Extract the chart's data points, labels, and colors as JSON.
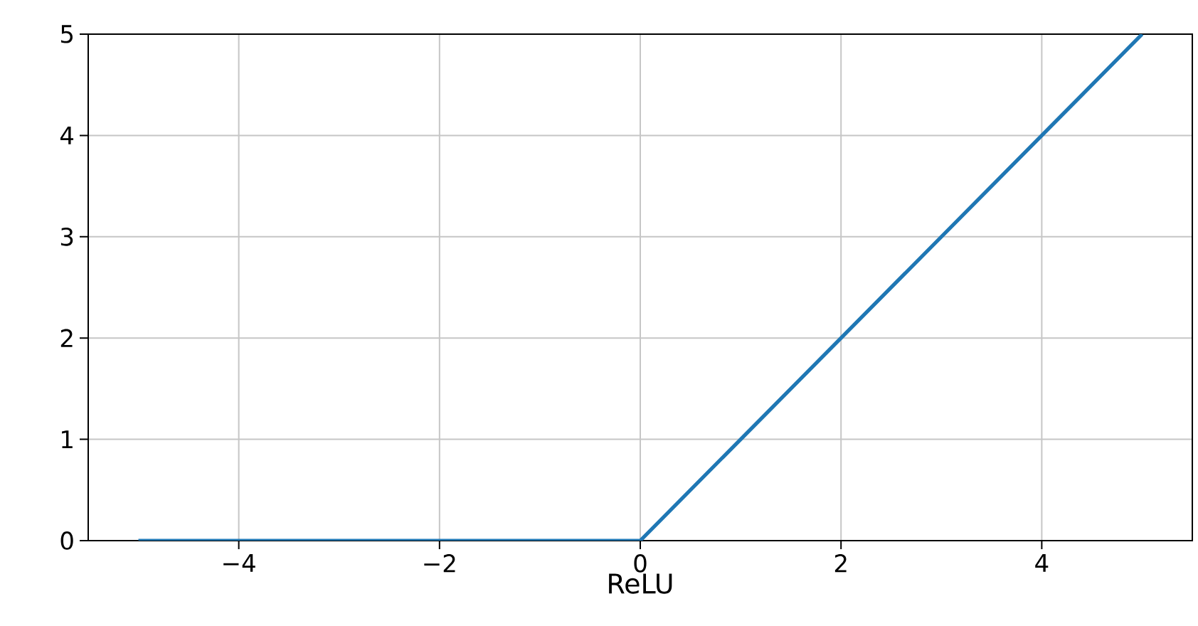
{
  "chart_data": {
    "type": "line",
    "xlabel": "ReLU",
    "x": [
      -5,
      0,
      5
    ],
    "series": [
      {
        "color": "#1f77b4",
        "values": [
          0,
          0,
          5
        ]
      }
    ],
    "xlim": [
      -5.5,
      5.5
    ],
    "ylim": [
      0,
      5
    ],
    "xticks": [
      {
        "value": -4,
        "label": "−4"
      },
      {
        "value": -2,
        "label": "−2"
      },
      0,
      2,
      4
    ],
    "yticks": [
      0,
      1,
      2,
      3,
      4,
      5
    ],
    "grid": true
  }
}
